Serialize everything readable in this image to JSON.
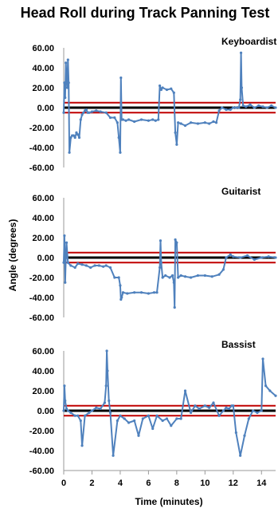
{
  "chart_data": {
    "type": "scatter",
    "title": "Head Roll during Track Panning Test",
    "xlabel": "Time (minutes)",
    "ylabel": "Angle (degrees)",
    "xlim": [
      0,
      15
    ],
    "ylim": [
      -60,
      60
    ],
    "x_ticks": [
      0,
      2,
      4,
      6,
      8,
      10,
      12,
      14
    ],
    "y_ticks": [
      "60.00",
      "40.00",
      "20.00",
      "0.00",
      "-20.00",
      "-40.00",
      "-60.00"
    ],
    "threshold_band": [
      -5,
      5
    ],
    "grid": false,
    "colors": {
      "series": "#4f81bd",
      "threshold": "#c00000",
      "zero": "#000000"
    },
    "panels": [
      {
        "name": "Keyboardist",
        "x": [
          0,
          0.05,
          0.1,
          0.15,
          0.2,
          0.25,
          0.3,
          0.35,
          0.4,
          0.5,
          0.6,
          0.7,
          0.8,
          0.9,
          1.0,
          1.1,
          1.2,
          1.3,
          1.4,
          1.5,
          1.6,
          1.7,
          1.8,
          2.0,
          2.3,
          2.6,
          3.0,
          3.3,
          3.6,
          3.8,
          3.9,
          4.0,
          4.05,
          4.1,
          4.2,
          4.4,
          4.6,
          5.0,
          5.5,
          6.0,
          6.3,
          6.5,
          6.7,
          6.8,
          6.9,
          7.0,
          7.3,
          7.6,
          7.8,
          7.9,
          8.0,
          8.1,
          8.3,
          8.6,
          9.0,
          9.5,
          10.0,
          10.3,
          10.6,
          10.8,
          11.0,
          11.2,
          11.5,
          11.8,
          12.0,
          12.2,
          12.4,
          12.5,
          12.55,
          12.6,
          12.7,
          12.9,
          13.2,
          13.5,
          13.8,
          14.1,
          14.4,
          14.7,
          15.0
        ],
        "y": [
          -5,
          25,
          10,
          45,
          30,
          20,
          48,
          25,
          -45,
          -30,
          -28,
          -28,
          -30,
          -25,
          -27,
          -30,
          -12,
          -7,
          -5,
          -3,
          -2,
          -5,
          -5,
          -4,
          -3,
          -4,
          -5,
          -10,
          -10,
          -15,
          -30,
          -45,
          30,
          -12,
          -12,
          -13,
          -12,
          -14,
          -12,
          -13,
          -12,
          -13,
          -12,
          22,
          18,
          20,
          18,
          19,
          15,
          -25,
          -37,
          -15,
          -16,
          -18,
          -15,
          -16,
          -15,
          -16,
          -14,
          -15,
          -3,
          0,
          -2,
          -2,
          0,
          0,
          0,
          8,
          55,
          20,
          2,
          1,
          3,
          0,
          2,
          1,
          0,
          2,
          0
        ]
      },
      {
        "name": "Guitarist",
        "x": [
          0,
          0.05,
          0.1,
          0.15,
          0.2,
          0.3,
          0.5,
          0.8,
          1.0,
          1.3,
          1.6,
          1.9,
          2.2,
          2.5,
          2.8,
          3.0,
          3.3,
          3.6,
          3.9,
          4.0,
          4.05,
          4.1,
          4.2,
          4.5,
          5.0,
          5.5,
          6.0,
          6.4,
          6.6,
          6.8,
          6.85,
          6.9,
          7.0,
          7.2,
          7.5,
          7.7,
          7.8,
          7.85,
          7.9,
          8.0,
          8.1,
          8.3,
          8.6,
          9.0,
          9.5,
          10.0,
          10.5,
          11.0,
          11.3,
          11.5,
          11.8,
          12.0,
          12.5,
          13.0,
          13.5,
          14.0,
          14.5,
          15.0
        ],
        "y": [
          -5,
          22,
          -25,
          0,
          15,
          -5,
          -8,
          -10,
          -6,
          -7,
          -8,
          -10,
          -8,
          -8,
          -9,
          -8,
          -10,
          -20,
          -20,
          -28,
          -42,
          -40,
          -35,
          -36,
          -35,
          -35,
          -36,
          -35,
          -35,
          -10,
          17,
          -5,
          -20,
          -18,
          -20,
          -18,
          -25,
          -50,
          18,
          15,
          -20,
          -18,
          -19,
          -20,
          -18,
          -18,
          -19,
          -17,
          -12,
          0,
          3,
          1,
          0,
          2,
          -2,
          0,
          1,
          0
        ]
      },
      {
        "name": "Bassist",
        "x": [
          0,
          0.05,
          0.1,
          0.2,
          0.3,
          0.5,
          0.8,
          1.0,
          1.2,
          1.3,
          1.5,
          1.8,
          2.0,
          2.3,
          2.6,
          2.9,
          3.0,
          3.05,
          3.1,
          3.2,
          3.3,
          3.5,
          3.8,
          4.0,
          4.3,
          4.6,
          5.0,
          5.3,
          5.6,
          6.0,
          6.3,
          6.6,
          7.0,
          7.3,
          7.6,
          8.0,
          8.3,
          8.6,
          9.0,
          9.3,
          9.6,
          10.0,
          10.3,
          10.6,
          11.0,
          11.3,
          11.5,
          11.7,
          11.9,
          12.0,
          12.2,
          12.5,
          12.8,
          13.1,
          13.4,
          13.7,
          14.0,
          14.1,
          14.3,
          14.6,
          15.0
        ],
        "y": [
          0,
          25,
          10,
          2,
          0,
          -2,
          -5,
          -5,
          -10,
          -35,
          -5,
          -2,
          0,
          3,
          2,
          8,
          25,
          60,
          40,
          10,
          -2,
          -45,
          -10,
          -5,
          -8,
          -12,
          -10,
          -25,
          -8,
          -5,
          -18,
          -5,
          -10,
          -8,
          -15,
          -8,
          -8,
          20,
          -2,
          5,
          2,
          5,
          3,
          8,
          -5,
          0,
          3,
          2,
          5,
          5,
          -22,
          -45,
          -25,
          -8,
          0,
          -2,
          0,
          52,
          25,
          20,
          15
        ]
      }
    ]
  }
}
